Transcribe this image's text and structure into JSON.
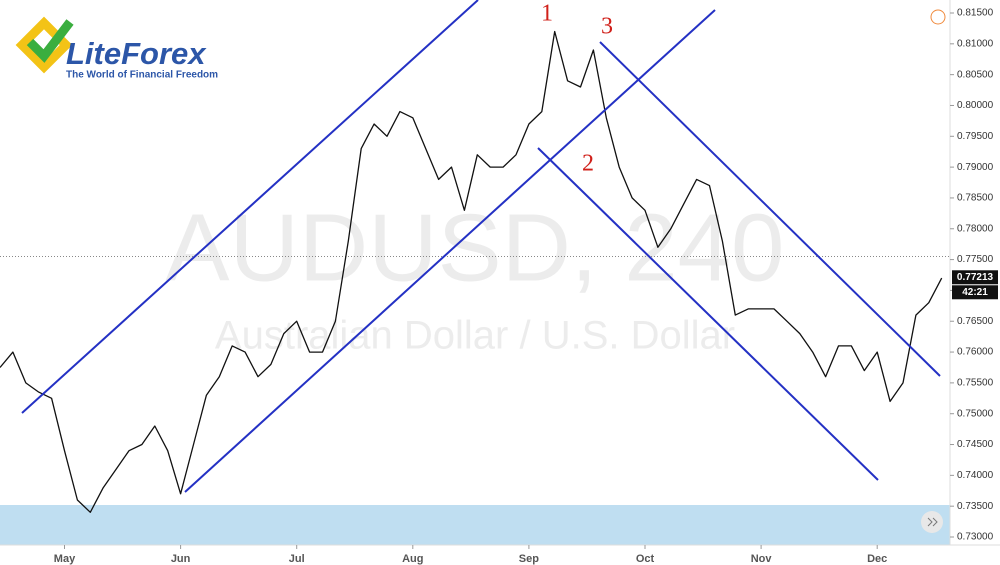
{
  "logo": {
    "name": "LiteForex",
    "tagline": "The World of Financial Freedom"
  },
  "chart_data": {
    "type": "line",
    "watermark_symbol": "AUDUSD, 240",
    "watermark_name": "Australian Dollar / U.S. Dollar",
    "categories": [
      null,
      null,
      null,
      null,
      null,
      "May",
      null,
      null,
      null,
      null,
      null,
      null,
      null,
      null,
      "Jun",
      null,
      null,
      null,
      null,
      null,
      null,
      null,
      null,
      "Jul",
      null,
      null,
      null,
      null,
      null,
      null,
      null,
      null,
      "Aug",
      null,
      null,
      null,
      null,
      null,
      null,
      null,
      null,
      "Sep",
      null,
      null,
      null,
      null,
      null,
      null,
      null,
      null,
      "Oct",
      null,
      null,
      null,
      null,
      null,
      null,
      null,
      null,
      "Nov",
      null,
      null,
      null,
      null,
      null,
      null,
      null,
      null,
      "Dec",
      null,
      null,
      null,
      null,
      null
    ],
    "series": [
      {
        "name": "AUDUSD",
        "color": "#111111",
        "values": [
          0.7575,
          0.76,
          0.755,
          0.7535,
          0.7525,
          0.744,
          0.736,
          0.734,
          0.738,
          0.741,
          0.744,
          0.745,
          0.748,
          0.744,
          0.737,
          0.745,
          0.753,
          0.756,
          0.761,
          0.76,
          0.756,
          0.758,
          0.763,
          0.765,
          0.76,
          0.76,
          0.765,
          0.778,
          0.793,
          0.797,
          0.795,
          0.799,
          0.798,
          0.793,
          0.788,
          0.79,
          0.783,
          0.792,
          0.79,
          0.79,
          0.792,
          0.797,
          0.799,
          0.812,
          0.804,
          0.803,
          0.809,
          0.798,
          0.79,
          0.785,
          0.783,
          0.777,
          0.78,
          0.784,
          0.788,
          0.787,
          0.778,
          0.766,
          0.767,
          0.767,
          0.767,
          0.765,
          0.763,
          0.76,
          0.756,
          0.761,
          0.761,
          0.757,
          0.76,
          0.752,
          0.755,
          0.766,
          0.768,
          0.772
        ]
      }
    ],
    "ylim": [
      0.7275,
      0.8175
    ],
    "yticks": [
      {
        "value": 0.73,
        "label": "0.73000"
      },
      {
        "value": 0.735,
        "label": "0.73500"
      },
      {
        "value": 0.74,
        "label": "0.74000"
      },
      {
        "value": 0.745,
        "label": "0.74500"
      },
      {
        "value": 0.75,
        "label": "0.75000"
      },
      {
        "value": 0.755,
        "label": "0.75500"
      },
      {
        "value": 0.76,
        "label": "0.76000"
      },
      {
        "value": 0.765,
        "label": "0.76500"
      },
      {
        "value": 0.77,
        "label": "0.77000"
      },
      {
        "value": 0.775,
        "label": "0.77500"
      },
      {
        "value": 0.78,
        "label": "0.78000"
      },
      {
        "value": 0.785,
        "label": "0.78500"
      },
      {
        "value": 0.79,
        "label": "0.79000"
      },
      {
        "value": 0.795,
        "label": "0.79500"
      },
      {
        "value": 0.8,
        "label": "0.80000"
      },
      {
        "value": 0.805,
        "label": "0.80500"
      },
      {
        "value": 0.81,
        "label": "0.81000"
      },
      {
        "value": 0.815,
        "label": "0.81500"
      }
    ],
    "hline": 0.7755,
    "last_price": 0.77213,
    "timer": "42:21",
    "annotations": [
      "1",
      "2",
      "3"
    ]
  }
}
